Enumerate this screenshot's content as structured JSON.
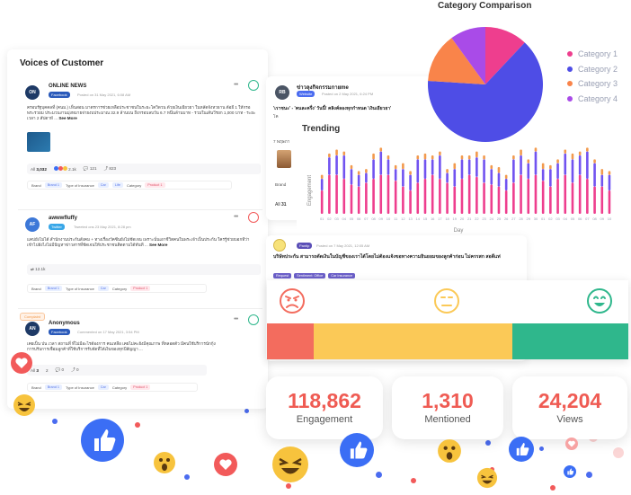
{
  "voc": {
    "title": "Voices of Customer",
    "posts": [
      {
        "avatar": "ON",
        "author": "ONLINE NEWS",
        "channel": "Facebook",
        "meta": "Posted on 31 May 2021, 6:08 AM",
        "body": "ครอบรัฐบุคคลที่ (คนม.) เห็นสอน มาตรการช่วยเหลือประชาชนในระยะโควิดวน ด้วยเงินเยียวยา ในหลัดจังหวธาน ต้อยี 1 ให้กรอพระรวยม ประมวนงานมุ่งหมายจ่ายงบประมาณ 32.9 ล้านบน ถึงกรอบลบวัน 6.7 หนึ่นล้านบาท - รวมในเส้นวีรยก 1,000 บาท - ระยะเวลา 2 สัปดาห์ ...",
        "see_more": "See More",
        "reactions": "3,032",
        "reaction_count": "2.1k",
        "comments": "121",
        "shares": "823"
      },
      {
        "avatar": "AF",
        "author": "awwwfluffy",
        "channel": "Twitter",
        "meta": "Tweeted ons 23 May 2021, 8:28 pm",
        "body": "แคปยังไม่ได้ สำนักงานประกันสังคม + ทางเรื่องวัคซีนยังไม่ชัดเจน เพราะนั่นเอาชีวิตคนในพระเจ้าเป็นประกัน ใครรู้ช่วยบอกทีว่าเข้าไปยังไงไม่มีปัญหาข่าวสารที่ชัดเจนให้ประชาชนติดตามได้ทันที ...",
        "see_more": "See More",
        "retweets": "12.1k"
      },
      {
        "badge": "Complaint",
        "avatar": "AN",
        "author": "Anonymous",
        "channel": "Facebook",
        "meta": "Commented on 17 May 2021, 3:54 PM",
        "body": "เคยเป็น ป่น เวลา สถานที่ ที่ไม่มีอะไรต้องการ คนเหลือ เคยไม่คะยังมีคุณภาพ ที่หลอดตัว มีคนใช้บริการนักกุ้งการปรับการเชื่อมลูกค้าที่ใช้บริการรับจัดที่ได้เงินของทุกปีสัญญา ...",
        "reactions": "3",
        "reaction_count": "2",
        "comments": "0",
        "shares": "0"
      }
    ],
    "tag_labels": {
      "brand": "Brand",
      "type": "Type of Insurance",
      "category": "Category"
    },
    "tag_values": {
      "brand": "Brand 1",
      "type1": "Car",
      "type2": "Life",
      "category": "Product 1"
    }
  },
  "card2": {
    "avatar": "RB",
    "author": "ข่าวลุงกิจกรรมกายme",
    "channel": "Website",
    "meta": "Posted on 2 May 2021, 6:24 PM",
    "headline": "'เราชนะ' - 'คนละครึ่ง' วันนี้! คลิงค์ลองทุกกำหนด 'เงินเยียวยา'",
    "body": "โค",
    "body2": "7 พฤษภา",
    "brand": "Brand",
    "count": "31"
  },
  "trending": {
    "title": "Trending",
    "ylabel": "Engagement",
    "xlabel": "Day"
  },
  "chart_data": [
    {
      "type": "bar",
      "title": "Trending",
      "xlabel": "Day",
      "ylabel": "Engagement",
      "categories": [
        "01",
        "02",
        "03",
        "04",
        "05",
        "06",
        "07",
        "08",
        "09",
        "10",
        "11",
        "12",
        "13",
        "14",
        "15",
        "16",
        "17",
        "18",
        "19",
        "20",
        "21",
        "22",
        "23",
        "24",
        "25",
        "26",
        "27",
        "28",
        "29",
        "30",
        "01",
        "02",
        "03",
        "04",
        "05",
        "06",
        "07",
        "08",
        "09",
        "10"
      ],
      "series": [
        {
          "values": [
            12,
            20,
            20,
            18,
            15,
            14,
            16,
            18,
            20,
            20,
            17,
            14,
            12,
            16,
            18,
            20,
            18,
            16,
            14,
            18,
            20,
            19,
            16,
            15,
            14,
            12,
            16,
            20,
            18,
            20,
            17,
            14,
            18,
            20,
            16,
            20,
            18,
            14,
            14,
            12
          ]
        },
        {
          "values": [
            6,
            9,
            10,
            12,
            8,
            6,
            5,
            10,
            12,
            8,
            6,
            9,
            8,
            12,
            10,
            8,
            12,
            5,
            9,
            10,
            8,
            10,
            12,
            8,
            7,
            6,
            12,
            10,
            8,
            12,
            6,
            9,
            8,
            11,
            12,
            10,
            14,
            12,
            6,
            8
          ]
        },
        {
          "values": [
            2,
            2,
            3,
            2,
            2,
            2,
            2,
            3,
            2,
            2,
            2,
            3,
            2,
            2,
            3,
            2,
            2,
            2,
            3,
            2,
            2,
            3,
            2,
            2,
            3,
            2,
            2,
            3,
            2,
            2,
            3,
            2,
            2,
            2,
            3,
            2,
            2,
            2,
            3,
            2
          ]
        }
      ],
      "colors": [
        "#ee3e8e",
        "#7153f0",
        "#f29a4d"
      ]
    },
    {
      "type": "pie",
      "title": "Category Comparison",
      "categories": [
        "Category 1",
        "Category 2",
        "Category 3",
        "Category 4"
      ],
      "values": [
        12,
        64,
        14,
        10
      ],
      "colors": [
        "#ee3e8e",
        "#4e4de6",
        "#f9844a",
        "#a94be8"
      ],
      "legend": "right"
    }
  ],
  "pie": {
    "title": "Category Comparison",
    "legend": [
      "Category 1",
      "Category 2",
      "Category 3",
      "Category 4"
    ]
  },
  "card3": {
    "channel": "Pantip",
    "meta": "Posted on 7 May 2021, 12:05 AM",
    "headline": "บริษัทประกัน สามารถตัดเงินในบัญชีของเราได้โดยไม่ต้องแจ้งขอทางความยินยอมของลูกค้าก่อน ไม่ครรสก สอดีแท่",
    "tags": [
      "Request",
      "Sentiment: Office",
      "Car Insurance"
    ]
  },
  "sentiment": {
    "negative_pct": 13,
    "neutral_pct": 55,
    "positive_pct": 32,
    "colors": {
      "negative": "#f36c5e",
      "neutral": "#fbc957",
      "positive": "#2fb78c"
    }
  },
  "metrics": [
    {
      "value": "118,862",
      "label": "Engagement"
    },
    {
      "value": "1,310",
      "label": "Mentioned"
    },
    {
      "value": "24,204",
      "label": "Views"
    }
  ]
}
